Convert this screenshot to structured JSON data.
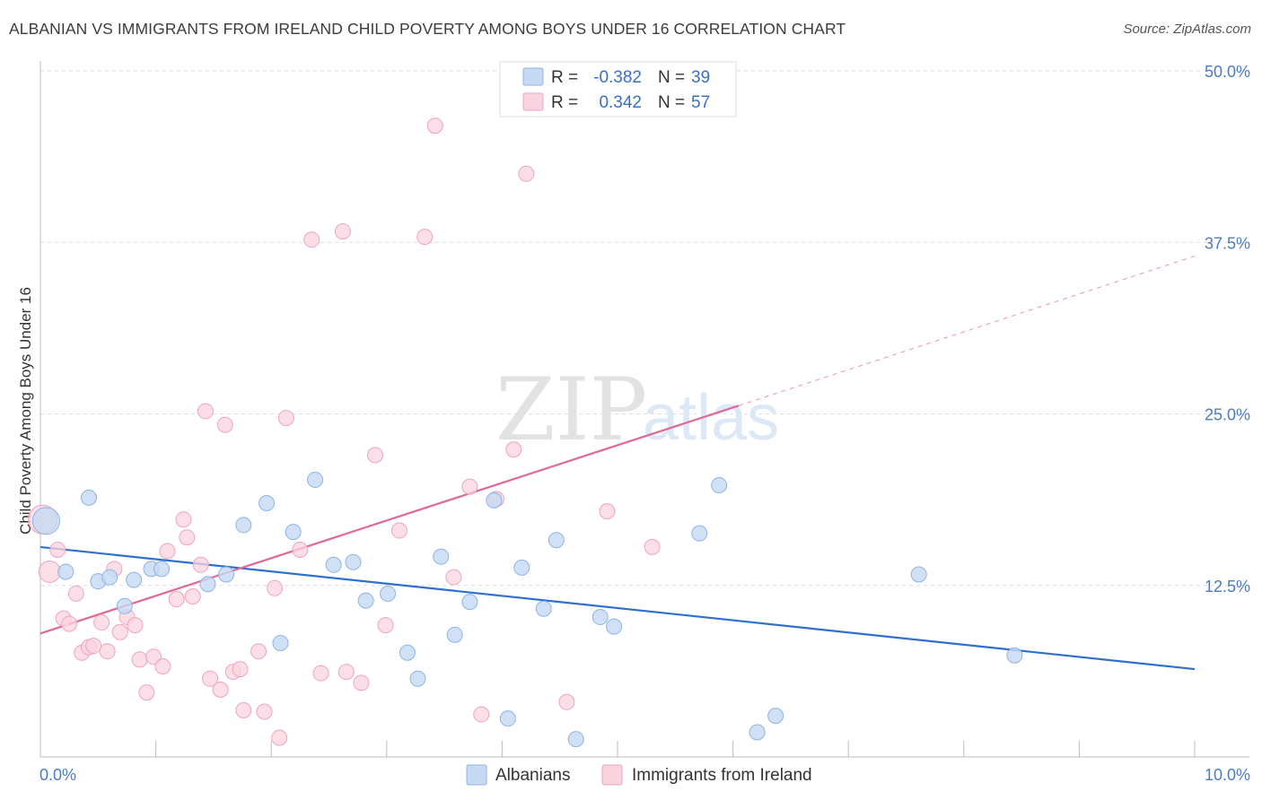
{
  "title": "ALBANIAN VS IMMIGRANTS FROM IRELAND CHILD POVERTY AMONG BOYS UNDER 16 CORRELATION CHART",
  "source": "Source: ZipAtlas.com",
  "watermark": {
    "part1": "ZIP",
    "part2": "atlas"
  },
  "legend": {
    "r_label": "R =",
    "n_label": "N =",
    "rows": [
      {
        "r": "-0.382",
        "n": "39",
        "color": "#a9c8f0"
      },
      {
        "r": "0.342",
        "n": "57",
        "color": "#f7bfd0"
      }
    ]
  },
  "colors": {
    "albanian_fill": "#c5d9f3",
    "albanian_stroke": "#8db3e6",
    "albanian_line": "#2e6fcf",
    "ireland_fill": "#f9d3de",
    "ireland_stroke": "#eea4bc",
    "ireland_line": "#e0679a",
    "grid": "#dddddd",
    "tick_text": "#4a7cc4"
  },
  "chart_data": {
    "type": "scatter",
    "title": "ALBANIAN VS IMMIGRANTS FROM IRELAND CHILD POVERTY AMONG BOYS UNDER 16 CORRELATION CHART",
    "xlabel": "",
    "ylabel": "Child Poverty Among Boys Under 16",
    "xlim": [
      0,
      10
    ],
    "ylim": [
      0,
      50
    ],
    "x_tick_labels": [
      "0.0%",
      "10.0%"
    ],
    "y_ticks": [
      12.5,
      25.0,
      37.5,
      50.0
    ],
    "y_tick_labels": [
      "12.5%",
      "25.0%",
      "37.5%",
      "50.0%"
    ],
    "grid": true,
    "legend_position": "top-center",
    "series": [
      {
        "name": "Albanians",
        "r": -0.382,
        "n": 39,
        "trend": {
          "x0": 0,
          "y0": 15.3,
          "x1": 10,
          "y1": 6.4
        },
        "points": [
          [
            0.05,
            17.2
          ],
          [
            0.22,
            13.5
          ],
          [
            0.42,
            18.9
          ],
          [
            0.5,
            12.8
          ],
          [
            0.6,
            13.1
          ],
          [
            0.73,
            11.0
          ],
          [
            0.81,
            12.9
          ],
          [
            0.96,
            13.7
          ],
          [
            1.05,
            13.7
          ],
          [
            1.45,
            12.6
          ],
          [
            1.61,
            13.3
          ],
          [
            1.76,
            16.9
          ],
          [
            1.96,
            18.5
          ],
          [
            2.08,
            8.3
          ],
          [
            2.19,
            16.4
          ],
          [
            2.38,
            20.2
          ],
          [
            2.54,
            14.0
          ],
          [
            2.71,
            14.2
          ],
          [
            2.82,
            11.4
          ],
          [
            3.01,
            11.9
          ],
          [
            3.18,
            7.6
          ],
          [
            3.27,
            5.7
          ],
          [
            3.47,
            14.6
          ],
          [
            3.59,
            8.9
          ],
          [
            3.72,
            11.3
          ],
          [
            3.93,
            18.7
          ],
          [
            4.05,
            2.8
          ],
          [
            4.17,
            13.8
          ],
          [
            4.36,
            10.8
          ],
          [
            4.47,
            15.8
          ],
          [
            4.64,
            1.3
          ],
          [
            4.85,
            10.2
          ],
          [
            4.97,
            9.5
          ],
          [
            5.71,
            16.3
          ],
          [
            5.88,
            19.8
          ],
          [
            6.21,
            1.8
          ],
          [
            6.37,
            3.0
          ],
          [
            7.61,
            13.3
          ],
          [
            8.44,
            7.4
          ]
        ]
      },
      {
        "name": "Immigrants from Ireland",
        "r": 0.342,
        "n": 57,
        "trend": {
          "x0": 0,
          "y0": 9.0,
          "x1": 6.05,
          "y1": 25.6
        },
        "trend_dashed": {
          "x0": 6.05,
          "y0": 25.6,
          "x1": 10.0,
          "y1": 36.5
        },
        "points": [
          [
            0.02,
            17.3
          ],
          [
            0.08,
            13.5
          ],
          [
            0.15,
            15.1
          ],
          [
            0.2,
            10.1
          ],
          [
            0.25,
            9.7
          ],
          [
            0.31,
            11.9
          ],
          [
            0.36,
            7.6
          ],
          [
            0.42,
            8.0
          ],
          [
            0.46,
            8.1
          ],
          [
            0.53,
            9.8
          ],
          [
            0.58,
            7.7
          ],
          [
            0.64,
            13.7
          ],
          [
            0.69,
            9.1
          ],
          [
            0.75,
            10.2
          ],
          [
            0.82,
            9.6
          ],
          [
            0.86,
            7.1
          ],
          [
            0.92,
            4.7
          ],
          [
            0.98,
            7.3
          ],
          [
            1.06,
            6.6
          ],
          [
            1.1,
            15.0
          ],
          [
            1.18,
            11.5
          ],
          [
            1.24,
            17.3
          ],
          [
            1.27,
            16.0
          ],
          [
            1.32,
            11.7
          ],
          [
            1.39,
            14.0
          ],
          [
            1.43,
            25.2
          ],
          [
            1.47,
            5.7
          ],
          [
            1.56,
            4.9
          ],
          [
            1.6,
            24.2
          ],
          [
            1.67,
            6.2
          ],
          [
            1.73,
            6.4
          ],
          [
            1.76,
            3.4
          ],
          [
            1.89,
            7.7
          ],
          [
            1.94,
            3.3
          ],
          [
            2.03,
            12.3
          ],
          [
            2.07,
            1.4
          ],
          [
            2.13,
            24.7
          ],
          [
            2.25,
            15.1
          ],
          [
            2.35,
            37.7
          ],
          [
            2.43,
            6.1
          ],
          [
            2.62,
            38.3
          ],
          [
            2.65,
            6.2
          ],
          [
            2.78,
            5.4
          ],
          [
            2.9,
            22.0
          ],
          [
            2.99,
            9.6
          ],
          [
            3.11,
            16.5
          ],
          [
            3.33,
            37.9
          ],
          [
            3.42,
            46.0
          ],
          [
            3.58,
            13.1
          ],
          [
            3.72,
            19.7
          ],
          [
            3.82,
            3.1
          ],
          [
            3.95,
            18.8
          ],
          [
            4.1,
            22.4
          ],
          [
            4.21,
            42.5
          ],
          [
            4.56,
            4.0
          ],
          [
            4.91,
            17.9
          ],
          [
            5.3,
            15.3
          ]
        ]
      }
    ]
  },
  "bottom_legend": [
    "Albanians",
    "Immigrants from Ireland"
  ]
}
